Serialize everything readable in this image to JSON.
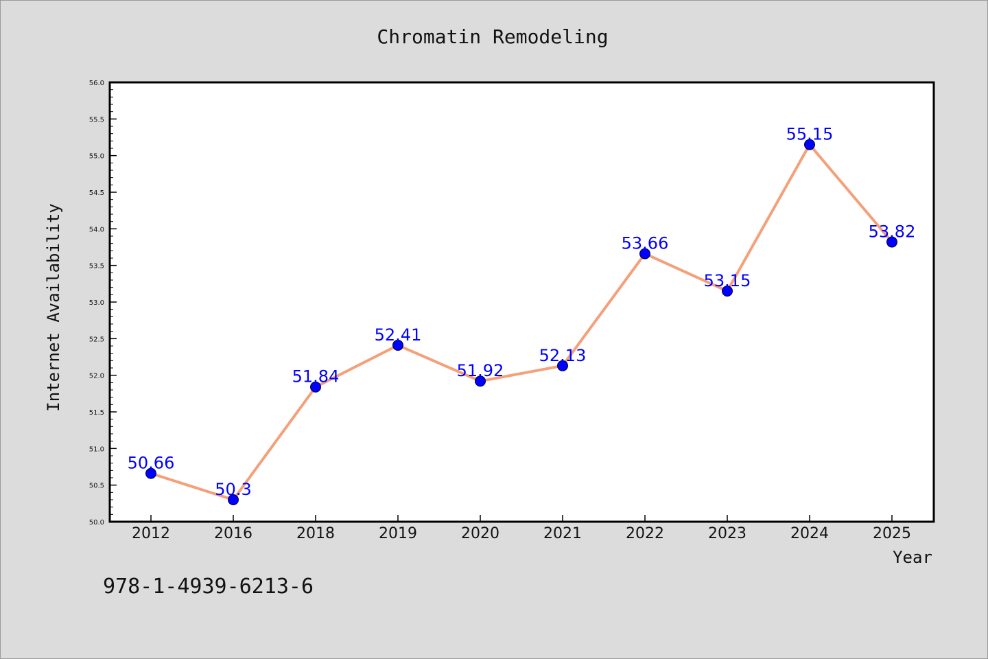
{
  "chart_data": {
    "type": "line",
    "title": "Chromatin Remodeling",
    "xlabel": "Year",
    "ylabel": "Internet Availability",
    "categories": [
      "2012",
      "2016",
      "2018",
      "2019",
      "2020",
      "2021",
      "2022",
      "2023",
      "2024",
      "2025"
    ],
    "values": [
      50.66,
      50.3,
      51.84,
      52.41,
      51.92,
      52.13,
      53.66,
      53.15,
      55.15,
      53.82
    ],
    "data_labels": [
      "50.66",
      "50.3",
      "51.84",
      "52.41",
      "51.92",
      "52.13",
      "53.66",
      "53.15",
      "55.15",
      "53.82"
    ],
    "ylim": [
      50.0,
      56.0
    ],
    "yticks": [
      "50.0",
      "50.5",
      "51.0",
      "51.5",
      "52.0",
      "52.5",
      "53.0",
      "53.5",
      "54.0",
      "54.5",
      "55.0",
      "55.5",
      "56.0"
    ],
    "grid": false,
    "legend": "none",
    "colors": {
      "line": "#f4a07a",
      "marker": "#0000ff",
      "data_label": "#0000ff",
      "plot_background": "#ffffff",
      "figure_background": "#dcdcdc"
    }
  },
  "footer": {
    "isbn": "978-1-4939-6213-6"
  }
}
